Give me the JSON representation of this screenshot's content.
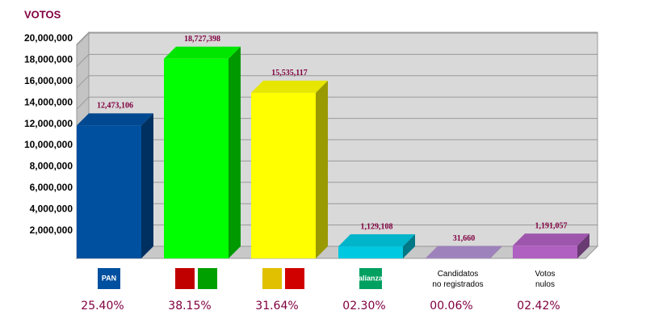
{
  "chart_data": {
    "type": "bar3d",
    "title": "VOTOS",
    "categories": [
      "PAN",
      null,
      null,
      "alianza",
      "Candidatos no registrados",
      "Votos nulos"
    ],
    "values": [
      12473106,
      18727398,
      15535117,
      1129108,
      31660,
      1191057
    ],
    "value_labels": [
      "12,473,106",
      "18,727,398",
      "15,535,117",
      "1,129,108",
      "31,660",
      "1,191,057"
    ],
    "colors": [
      "#0050a0",
      "#00ff00",
      "#ffff00",
      "#00c8e0",
      "#b090d0",
      "#b060c0"
    ],
    "shares": [
      25.4,
      38.15,
      31.64,
      2.3,
      0.06,
      2.42
    ],
    "share_labels": [
      "25.40%",
      "38.15%",
      "31.64%",
      "02.30%",
      "00.06%",
      "02.42%"
    ],
    "ylim": [
      0,
      20000000
    ],
    "yticks": [
      {
        "value": 2000000,
        "label": "2,000,000"
      },
      {
        "value": 4000000,
        "label": "4,000,000"
      },
      {
        "value": 6000000,
        "label": "6,000,000"
      },
      {
        "value": 8000000,
        "label": "8,000,000"
      },
      {
        "value": 10000000,
        "label": "10,000,000"
      },
      {
        "value": 12000000,
        "label": "12,000,000"
      },
      {
        "value": 14000000,
        "label": "14,000,000"
      },
      {
        "value": 16000000,
        "label": "16,000,000"
      },
      {
        "value": 18000000,
        "label": "18,000,000"
      },
      {
        "value": 20000000,
        "label": "20,000,000"
      }
    ],
    "grid": true
  }
}
